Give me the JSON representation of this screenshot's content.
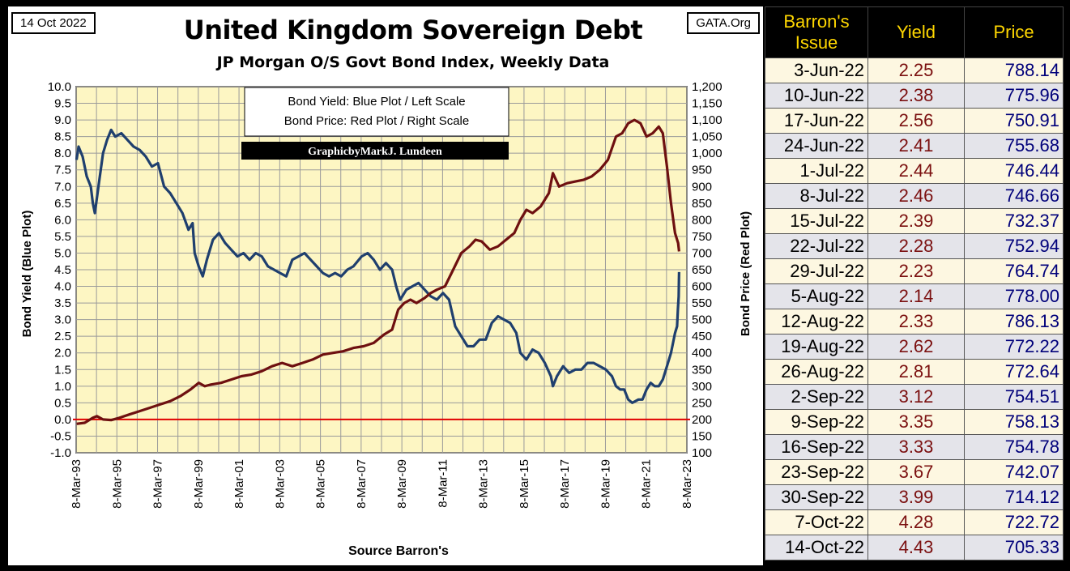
{
  "header": {
    "date": "14 Oct 2022",
    "source_site": "GATA.Org",
    "title": "United Kingdom Sovereign Debt",
    "subtitle": "JP Morgan O/S Govt Bond Index, Weekly Data"
  },
  "chart_data": {
    "type": "line",
    "legend": [
      "Bond Yield: Blue Plot / Left Scale",
      "Bond Price: Red Plot / Right Scale"
    ],
    "credit": "GraphicbyMarkJ. Lundeen",
    "xlabel": "Source Barron's",
    "ylabel_left": "Bond Yield   (Blue Plot)",
    "ylabel_right": "Bond Price   (Red Plot)",
    "x_ticks": [
      "8-Mar-93",
      "8-Mar-95",
      "8-Mar-97",
      "8-Mar-99",
      "8-Mar-01",
      "8-Mar-03",
      "8-Mar-05",
      "8-Mar-07",
      "8-Mar-09",
      "8-Mar-11",
      "8-Mar-13",
      "8-Mar-15",
      "8-Mar-17",
      "8-Mar-19",
      "8-Mar-21",
      "8-Mar-23"
    ],
    "x_range": [
      1993.18,
      2023.18
    ],
    "y_left_ticks": [
      "10.0",
      "9.5",
      "9.0",
      "8.5",
      "8.0",
      "7.5",
      "7.0",
      "6.5",
      "6.0",
      "5.5",
      "5.0",
      "4.5",
      "4.0",
      "3.5",
      "3.0",
      "2.5",
      "2.0",
      "1.5",
      "1.0",
      "0.5",
      "0.0",
      "-0.5",
      "-1.0"
    ],
    "y_left_range": [
      -1.0,
      10.0
    ],
    "y_right_ticks": [
      "1,200",
      "1,150",
      "1,100",
      "1,050",
      "1,000",
      "950",
      "900",
      "850",
      "800",
      "750",
      "700",
      "650",
      "600",
      "550",
      "500",
      "450",
      "400",
      "350",
      "300",
      "250",
      "200",
      "150",
      "100"
    ],
    "y_right_range": [
      100,
      1200
    ],
    "zero_line": 0.0,
    "series": [
      {
        "name": "Bond Yield",
        "axis": "left",
        "color": "#1f3f6e",
        "points": [
          [
            1993.2,
            7.8
          ],
          [
            1993.3,
            8.2
          ],
          [
            1993.5,
            7.9
          ],
          [
            1993.7,
            7.3
          ],
          [
            1993.9,
            7.0
          ],
          [
            1994.0,
            6.5
          ],
          [
            1994.1,
            6.2
          ],
          [
            1994.3,
            7.1
          ],
          [
            1994.5,
            8.0
          ],
          [
            1994.7,
            8.4
          ],
          [
            1994.9,
            8.7
          ],
          [
            1995.1,
            8.5
          ],
          [
            1995.4,
            8.6
          ],
          [
            1995.7,
            8.4
          ],
          [
            1996.0,
            8.2
          ],
          [
            1996.3,
            8.1
          ],
          [
            1996.6,
            7.9
          ],
          [
            1996.9,
            7.6
          ],
          [
            1997.2,
            7.7
          ],
          [
            1997.5,
            7.0
          ],
          [
            1997.8,
            6.8
          ],
          [
            1998.1,
            6.5
          ],
          [
            1998.4,
            6.2
          ],
          [
            1998.7,
            5.7
          ],
          [
            1998.9,
            5.9
          ],
          [
            1999.0,
            5.0
          ],
          [
            1999.2,
            4.6
          ],
          [
            1999.4,
            4.3
          ],
          [
            1999.6,
            4.8
          ],
          [
            1999.9,
            5.4
          ],
          [
            2000.2,
            5.6
          ],
          [
            2000.5,
            5.3
          ],
          [
            2000.8,
            5.1
          ],
          [
            2001.1,
            4.9
          ],
          [
            2001.4,
            5.0
          ],
          [
            2001.7,
            4.8
          ],
          [
            2002.0,
            5.0
          ],
          [
            2002.3,
            4.9
          ],
          [
            2002.6,
            4.6
          ],
          [
            2002.9,
            4.5
          ],
          [
            2003.2,
            4.4
          ],
          [
            2003.5,
            4.3
          ],
          [
            2003.8,
            4.8
          ],
          [
            2004.1,
            4.9
          ],
          [
            2004.4,
            5.0
          ],
          [
            2004.7,
            4.8
          ],
          [
            2005.0,
            4.6
          ],
          [
            2005.3,
            4.4
          ],
          [
            2005.6,
            4.3
          ],
          [
            2005.9,
            4.4
          ],
          [
            2006.2,
            4.3
          ],
          [
            2006.5,
            4.5
          ],
          [
            2006.8,
            4.6
          ],
          [
            2007.2,
            4.9
          ],
          [
            2007.5,
            5.0
          ],
          [
            2007.8,
            4.8
          ],
          [
            2008.1,
            4.5
          ],
          [
            2008.4,
            4.7
          ],
          [
            2008.7,
            4.5
          ],
          [
            2008.9,
            4.0
          ],
          [
            2009.1,
            3.6
          ],
          [
            2009.4,
            3.9
          ],
          [
            2009.7,
            4.0
          ],
          [
            2010.0,
            4.1
          ],
          [
            2010.3,
            3.9
          ],
          [
            2010.6,
            3.7
          ],
          [
            2010.9,
            3.6
          ],
          [
            2011.2,
            3.8
          ],
          [
            2011.5,
            3.6
          ],
          [
            2011.8,
            2.8
          ],
          [
            2012.1,
            2.5
          ],
          [
            2012.4,
            2.2
          ],
          [
            2012.7,
            2.2
          ],
          [
            2013.0,
            2.4
          ],
          [
            2013.3,
            2.4
          ],
          [
            2013.6,
            2.9
          ],
          [
            2013.9,
            3.1
          ],
          [
            2014.2,
            3.0
          ],
          [
            2014.5,
            2.9
          ],
          [
            2014.8,
            2.6
          ],
          [
            2015.0,
            2.0
          ],
          [
            2015.3,
            1.8
          ],
          [
            2015.6,
            2.1
          ],
          [
            2015.9,
            2.0
          ],
          [
            2016.2,
            1.7
          ],
          [
            2016.5,
            1.3
          ],
          [
            2016.6,
            1.0
          ],
          [
            2016.8,
            1.3
          ],
          [
            2017.1,
            1.6
          ],
          [
            2017.4,
            1.4
          ],
          [
            2017.7,
            1.5
          ],
          [
            2018.0,
            1.5
          ],
          [
            2018.3,
            1.7
          ],
          [
            2018.6,
            1.7
          ],
          [
            2018.9,
            1.6
          ],
          [
            2019.2,
            1.5
          ],
          [
            2019.5,
            1.3
          ],
          [
            2019.7,
            1.0
          ],
          [
            2019.9,
            0.9
          ],
          [
            2020.1,
            0.9
          ],
          [
            2020.3,
            0.6
          ],
          [
            2020.5,
            0.5
          ],
          [
            2020.8,
            0.6
          ],
          [
            2021.0,
            0.6
          ],
          [
            2021.2,
            0.9
          ],
          [
            2021.4,
            1.1
          ],
          [
            2021.6,
            1.0
          ],
          [
            2021.8,
            1.0
          ],
          [
            2022.0,
            1.2
          ],
          [
            2022.2,
            1.6
          ],
          [
            2022.4,
            2.0
          ],
          [
            2022.5,
            2.3
          ],
          [
            2022.6,
            2.6
          ],
          [
            2022.7,
            2.8
          ],
          [
            2022.74,
            3.3
          ],
          [
            2022.78,
            3.7
          ],
          [
            2022.79,
            4.2
          ],
          [
            2022.8,
            4.43
          ]
        ]
      },
      {
        "name": "Bond Price",
        "axis": "right",
        "color": "#6e1010",
        "points": [
          [
            1993.2,
            187
          ],
          [
            1993.6,
            190
          ],
          [
            1994.0,
            205
          ],
          [
            1994.2,
            210
          ],
          [
            1994.5,
            200
          ],
          [
            1994.9,
            198
          ],
          [
            1995.3,
            205
          ],
          [
            1995.8,
            215
          ],
          [
            1996.3,
            225
          ],
          [
            1996.8,
            235
          ],
          [
            1997.3,
            245
          ],
          [
            1997.8,
            255
          ],
          [
            1998.3,
            270
          ],
          [
            1998.8,
            290
          ],
          [
            1999.2,
            310
          ],
          [
            1999.5,
            300
          ],
          [
            1999.8,
            305
          ],
          [
            2000.3,
            310
          ],
          [
            2000.8,
            320
          ],
          [
            2001.3,
            330
          ],
          [
            2001.8,
            335
          ],
          [
            2002.3,
            345
          ],
          [
            2002.8,
            360
          ],
          [
            2003.3,
            370
          ],
          [
            2003.8,
            360
          ],
          [
            2004.3,
            370
          ],
          [
            2004.8,
            380
          ],
          [
            2005.3,
            395
          ],
          [
            2005.8,
            400
          ],
          [
            2006.3,
            405
          ],
          [
            2006.8,
            415
          ],
          [
            2007.3,
            420
          ],
          [
            2007.8,
            430
          ],
          [
            2008.3,
            455
          ],
          [
            2008.7,
            470
          ],
          [
            2009.0,
            530
          ],
          [
            2009.3,
            550
          ],
          [
            2009.6,
            560
          ],
          [
            2009.9,
            550
          ],
          [
            2010.3,
            565
          ],
          [
            2010.6,
            580
          ],
          [
            2010.9,
            590
          ],
          [
            2011.3,
            600
          ],
          [
            2011.7,
            650
          ],
          [
            2012.1,
            700
          ],
          [
            2012.5,
            720
          ],
          [
            2012.8,
            740
          ],
          [
            2013.1,
            735
          ],
          [
            2013.5,
            710
          ],
          [
            2013.9,
            720
          ],
          [
            2014.3,
            740
          ],
          [
            2014.7,
            760
          ],
          [
            2015.0,
            800
          ],
          [
            2015.3,
            830
          ],
          [
            2015.6,
            820
          ],
          [
            2016.0,
            840
          ],
          [
            2016.4,
            880
          ],
          [
            2016.6,
            940
          ],
          [
            2016.9,
            900
          ],
          [
            2017.3,
            910
          ],
          [
            2017.7,
            915
          ],
          [
            2018.1,
            920
          ],
          [
            2018.5,
            930
          ],
          [
            2018.9,
            950
          ],
          [
            2019.3,
            980
          ],
          [
            2019.7,
            1050
          ],
          [
            2020.0,
            1060
          ],
          [
            2020.3,
            1090
          ],
          [
            2020.6,
            1100
          ],
          [
            2020.9,
            1090
          ],
          [
            2021.2,
            1050
          ],
          [
            2021.5,
            1060
          ],
          [
            2021.8,
            1080
          ],
          [
            2022.0,
            1060
          ],
          [
            2022.2,
            960
          ],
          [
            2022.4,
            850
          ],
          [
            2022.6,
            760
          ],
          [
            2022.75,
            730
          ],
          [
            2022.8,
            705
          ]
        ]
      }
    ]
  },
  "table": {
    "headers": [
      "Barron's Issue",
      "Yield",
      "Price"
    ],
    "rows": [
      {
        "date": "3-Jun-22",
        "yield": "2.25",
        "price": "788.14"
      },
      {
        "date": "10-Jun-22",
        "yield": "2.38",
        "price": "775.96"
      },
      {
        "date": "17-Jun-22",
        "yield": "2.56",
        "price": "750.91"
      },
      {
        "date": "24-Jun-22",
        "yield": "2.41",
        "price": "755.68"
      },
      {
        "date": "1-Jul-22",
        "yield": "2.44",
        "price": "746.44"
      },
      {
        "date": "8-Jul-22",
        "yield": "2.46",
        "price": "746.66"
      },
      {
        "date": "15-Jul-22",
        "yield": "2.39",
        "price": "732.37"
      },
      {
        "date": "22-Jul-22",
        "yield": "2.28",
        "price": "752.94"
      },
      {
        "date": "29-Jul-22",
        "yield": "2.23",
        "price": "764.74"
      },
      {
        "date": "5-Aug-22",
        "yield": "2.14",
        "price": "778.00"
      },
      {
        "date": "12-Aug-22",
        "yield": "2.33",
        "price": "786.13"
      },
      {
        "date": "19-Aug-22",
        "yield": "2.62",
        "price": "772.22"
      },
      {
        "date": "26-Aug-22",
        "yield": "2.81",
        "price": "772.64"
      },
      {
        "date": "2-Sep-22",
        "yield": "3.12",
        "price": "754.51"
      },
      {
        "date": "9-Sep-22",
        "yield": "3.35",
        "price": "758.13"
      },
      {
        "date": "16-Sep-22",
        "yield": "3.33",
        "price": "754.78"
      },
      {
        "date": "23-Sep-22",
        "yield": "3.67",
        "price": "742.07"
      },
      {
        "date": "30-Sep-22",
        "yield": "3.99",
        "price": "714.12"
      },
      {
        "date": "7-Oct-22",
        "yield": "4.28",
        "price": "722.72"
      },
      {
        "date": "14-Oct-22",
        "yield": "4.43",
        "price": "705.33"
      }
    ]
  },
  "colors": {
    "plot_bg": "#fdf6c3",
    "grid": "#9a9a9a",
    "zero_line": "#e00000",
    "header_text": "#ffd700"
  }
}
